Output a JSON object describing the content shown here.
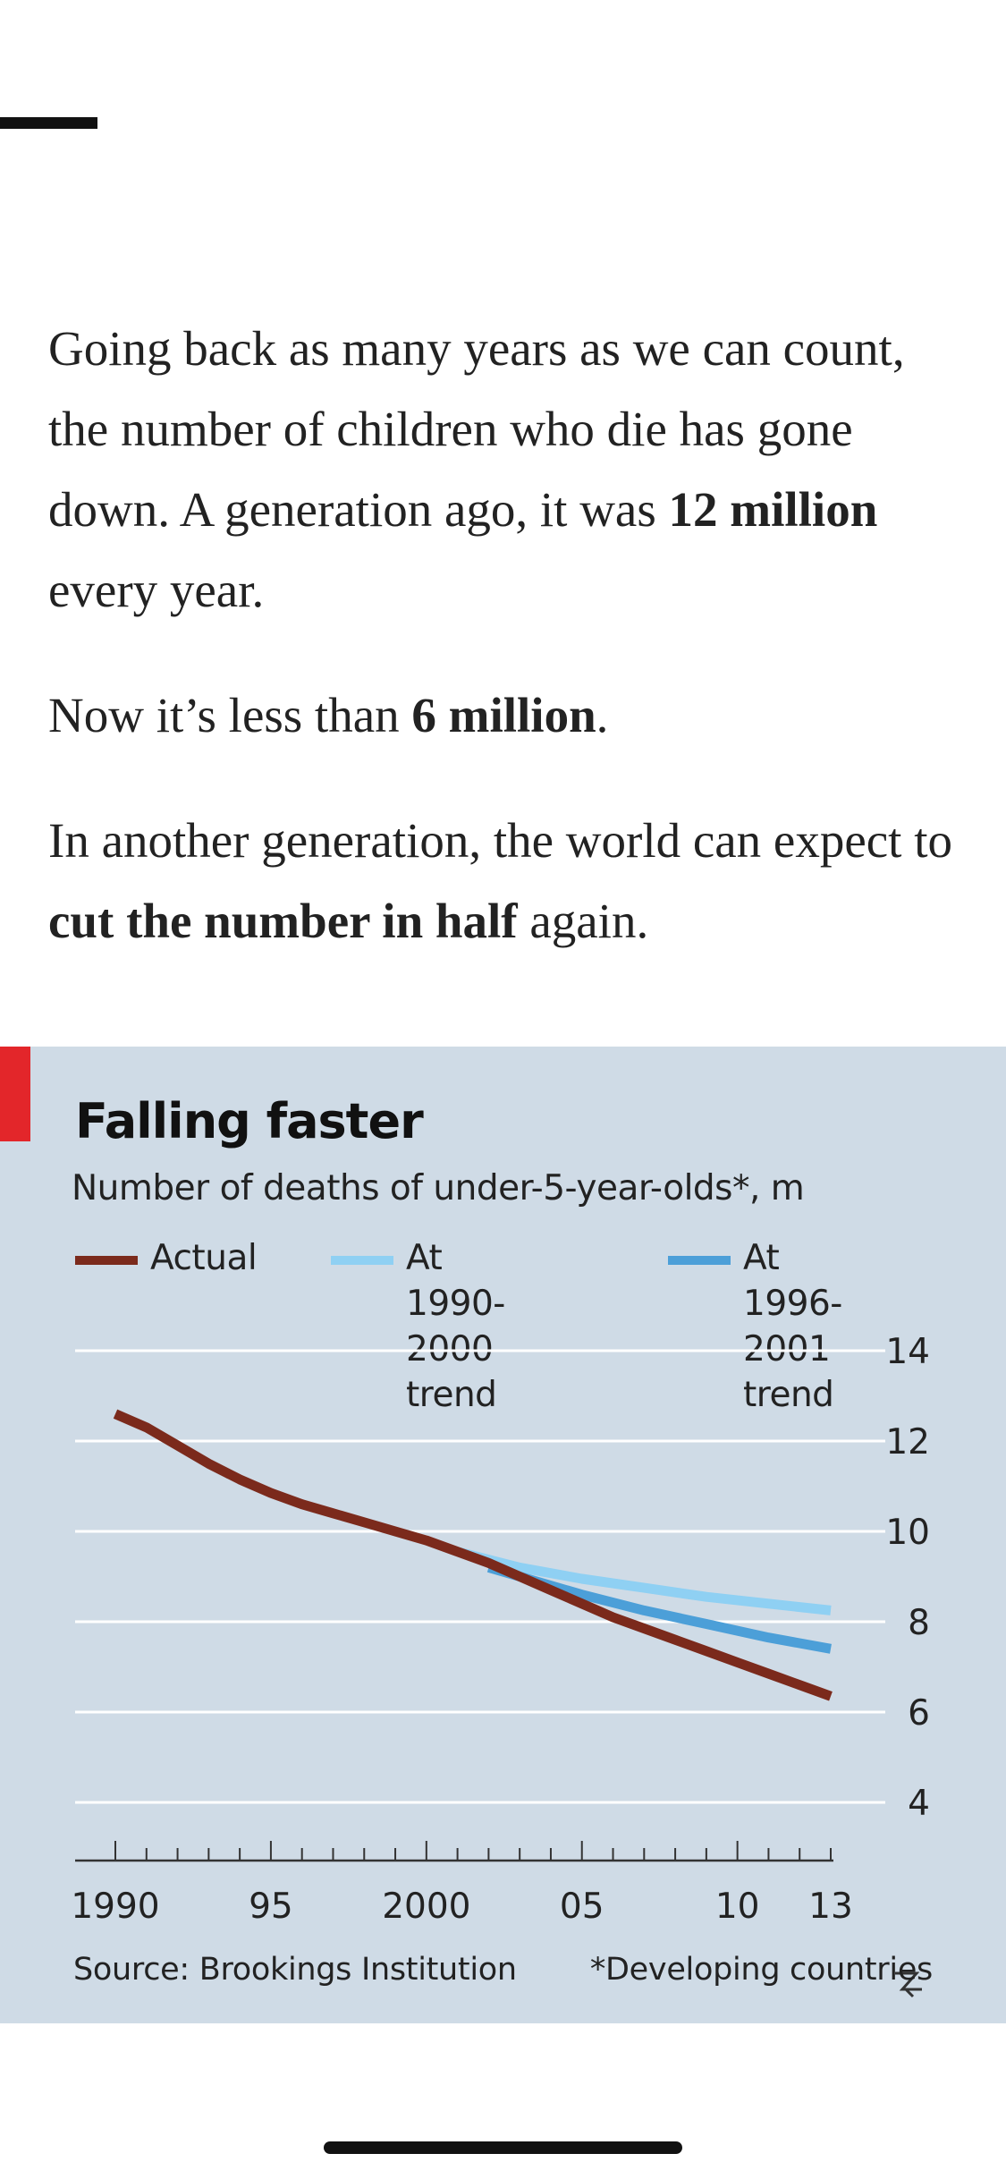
{
  "article": {
    "p1": {
      "part1": "Going back as many years as we can count, the number of children who die has gone down. A generation ago, it was ",
      "bold": "12 million",
      "part2": " every year."
    },
    "p2": {
      "part1": "Now it’s less than ",
      "bold": "6 million",
      "part2": "."
    },
    "p3": {
      "part1": "In another generation, the world can expect to ",
      "bold": "cut the number in half",
      "part2": " again."
    }
  },
  "colors": {
    "accent": "#e3262a",
    "panel_background": "#cfdbe6",
    "actual": "#7b2a1c",
    "trend_1990_2000": "#8fd0f3",
    "trend_1996_2001": "#4c9fd8",
    "gridline": "#ffffff"
  },
  "chart_data": {
    "type": "line",
    "title": "Falling faster",
    "subtitle": "Number of deaths of under-5-year-olds*, m",
    "xlabel": "",
    "ylabel": "",
    "xlim": [
      1990,
      2013
    ],
    "ylim": [
      4,
      14
    ],
    "x_tick_labels": [
      {
        "year": 1990,
        "label": "1990"
      },
      {
        "year": 1995,
        "label": "95"
      },
      {
        "year": 2000,
        "label": "2000"
      },
      {
        "year": 2005,
        "label": "05"
      },
      {
        "year": 2010,
        "label": "10"
      },
      {
        "year": 2013,
        "label": "13"
      }
    ],
    "y_ticks": [
      4,
      6,
      8,
      10,
      12,
      14
    ],
    "y_axis_side": "right",
    "y_axis_break": true,
    "grid": true,
    "legend_position": "top",
    "series": [
      {
        "name": "Actual",
        "color": "#7b2a1c",
        "x": [
          1990,
          1991,
          1992,
          1993,
          1994,
          1995,
          1996,
          1997,
          1998,
          1999,
          2000,
          2001,
          2002,
          2003,
          2004,
          2005,
          2006,
          2007,
          2008,
          2009,
          2010,
          2011,
          2012,
          2013
        ],
        "y": [
          12.6,
          12.3,
          11.9,
          11.5,
          11.15,
          10.85,
          10.6,
          10.4,
          10.2,
          10.0,
          9.8,
          9.55,
          9.3,
          9.0,
          8.7,
          8.4,
          8.1,
          7.85,
          7.6,
          7.35,
          7.1,
          6.85,
          6.6,
          6.35
        ]
      },
      {
        "name": "At 1990-2000 trend",
        "color": "#8fd0f3",
        "x": [
          2001,
          2003,
          2005,
          2007,
          2009,
          2011,
          2013
        ],
        "y": [
          9.55,
          9.2,
          8.95,
          8.75,
          8.55,
          8.4,
          8.25
        ]
      },
      {
        "name": "At 1996-2001 trend",
        "color": "#4c9fd8",
        "x": [
          2002,
          2003,
          2005,
          2007,
          2009,
          2011,
          2013
        ],
        "y": [
          9.2,
          9.0,
          8.6,
          8.25,
          7.95,
          7.65,
          7.4
        ]
      }
    ],
    "legend": [
      {
        "label": "Actual",
        "color": "#7b2a1c"
      },
      {
        "label": "At 1990-\n2000 trend",
        "color": "#8fd0f3"
      },
      {
        "label": "At 1996-\n2001 trend",
        "color": "#4c9fd8"
      }
    ],
    "source": "Source: Brookings Institution",
    "footnote": "*Developing countries"
  }
}
